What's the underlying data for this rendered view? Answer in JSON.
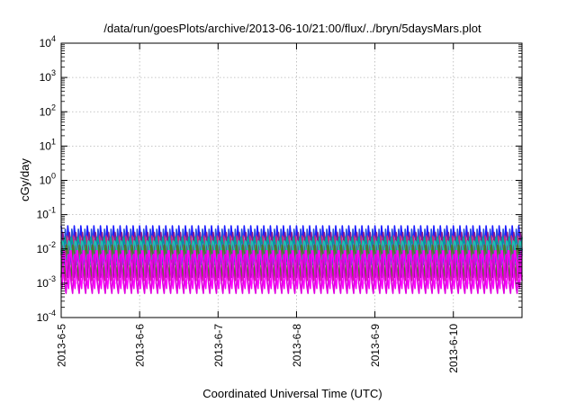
{
  "chart_data": {
    "type": "line",
    "title": "/data/run/goesPlots/archive/2013-06-10/21:00/flux/../bryn/5daysMars.plot",
    "xlabel": "Coordinated Universal Time (UTC)",
    "ylabel": "cGy/day",
    "yscale": "log",
    "ylim": [
      0.0001,
      10000
    ],
    "y_ticks": [
      {
        "value": 0.0001,
        "base": "10",
        "exp": "-4"
      },
      {
        "value": 0.001,
        "base": "10",
        "exp": "-3"
      },
      {
        "value": 0.01,
        "base": "10",
        "exp": "-2"
      },
      {
        "value": 0.1,
        "base": "10",
        "exp": "-1"
      },
      {
        "value": 1,
        "base": "10",
        "exp": "0"
      },
      {
        "value": 10,
        "base": "10",
        "exp": "1"
      },
      {
        "value": 100,
        "base": "10",
        "exp": "2"
      },
      {
        "value": 1000,
        "base": "10",
        "exp": "3"
      },
      {
        "value": 10000,
        "base": "10",
        "exp": "4"
      }
    ],
    "xlim": [
      "2013-06-05 00:00",
      "2013-06-10 21:00"
    ],
    "x_ticks": [
      "2013-6-5",
      "2013-6-6",
      "2013-6-7",
      "2013-6-8",
      "2013-6-9",
      "2013-6-10"
    ],
    "grid": true,
    "legend": "none",
    "pattern": {
      "cycles_per_day": 12,
      "phase_step_hours": 0.25
    },
    "series": [
      {
        "color": "#1a1aff",
        "peak": 0.047,
        "trough": 0.0035
      },
      {
        "color": "#2a52d8",
        "peak": 0.04,
        "trough": 0.003
      },
      {
        "color": "#8b1a8b",
        "peak": 0.035,
        "trough": 0.0013
      },
      {
        "color": "#c03080",
        "peak": 0.03,
        "trough": 0.0011
      },
      {
        "color": "#00a0a0",
        "peak": 0.025,
        "trough": 0.006
      },
      {
        "color": "#20c0b0",
        "peak": 0.02,
        "trough": 0.005
      },
      {
        "color": "#4d7a2a",
        "peak": 0.018,
        "trough": 0.0016
      },
      {
        "color": "#ff00ff",
        "peak": 0.014,
        "trough": 0.0007
      },
      {
        "color": "#e000e0",
        "peak": 0.011,
        "trough": 0.0005
      }
    ]
  }
}
